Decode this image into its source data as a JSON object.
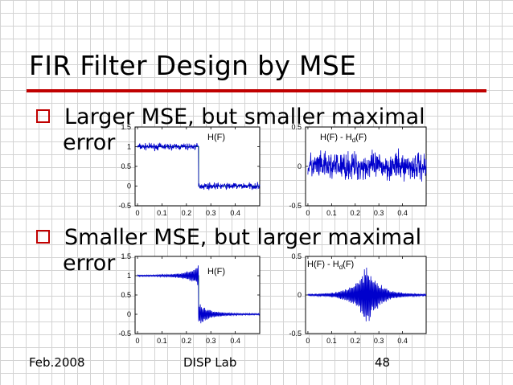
{
  "slide": {
    "title": "FIR Filter Design by MSE",
    "bullets": [
      {
        "line1": "Larger MSE,  but smaller maximal",
        "line2": "error"
      },
      {
        "line1": "Smaller MSE,  but larger maximal",
        "line2": "error"
      }
    ],
    "footer": {
      "left": "Feb.2008",
      "center": "DISP Lab",
      "right": "48"
    }
  },
  "colors": {
    "accent": "#c00000",
    "signal": "#0000cc",
    "ideal": "#008000"
  },
  "chart_data": [
    {
      "type": "line",
      "label": "H(F)",
      "x_ticks": [
        "0",
        "0.1",
        "0.2",
        "0.3",
        "0.4"
      ],
      "y_ticks": [
        "1.5",
        "1",
        "0.5",
        "0",
        "-0.5"
      ],
      "xlim": [
        -0.01,
        0.5
      ],
      "ylim": [
        -0.5,
        1.5
      ],
      "passband_level": 1,
      "cutoff": 0.25,
      "ripple": "large-uniform",
      "series": [
        {
          "name": "H(F)",
          "shape": "lowpass"
        }
      ]
    },
    {
      "type": "line",
      "label_main": "H(F) - H",
      "label_sub": "d",
      "label_end": "(F)",
      "x_ticks": [
        "0",
        "0.1",
        "0.2",
        "0.3",
        "0.4"
      ],
      "y_ticks": [
        "0.5",
        "0",
        "-0.5"
      ],
      "xlim": [
        -0.01,
        0.5
      ],
      "ylim": [
        -0.5,
        0.5
      ],
      "ripple": "large-uniform",
      "series": [
        {
          "name": "H(F) - Hd(F)",
          "shape": "uniform-error"
        }
      ]
    },
    {
      "type": "line",
      "label": "H(F)",
      "x_ticks": [
        "0",
        "0.1",
        "0.2",
        "0.3",
        "0.4"
      ],
      "y_ticks": [
        "1.5",
        "1",
        "0.5",
        "0",
        "-0.5"
      ],
      "xlim": [
        -0.01,
        0.5
      ],
      "ylim": [
        -0.5,
        1.5
      ],
      "passband_level": 1,
      "cutoff": 0.25,
      "ripple": "gibbs",
      "series": [
        {
          "name": "H(F)",
          "shape": "lowpass"
        }
      ]
    },
    {
      "type": "line",
      "label_main": "H(F) - H",
      "label_sub": "d",
      "label_end": "(F)",
      "x_ticks": [
        "0",
        "0.1",
        "0.2",
        "0.3",
        "0.4"
      ],
      "y_ticks": [
        "0.5",
        "0",
        "-0.5"
      ],
      "xlim": [
        -0.01,
        0.5
      ],
      "ylim": [
        -0.5,
        0.5
      ],
      "ripple": "gibbs",
      "series": [
        {
          "name": "H(F) - Hd(F)",
          "shape": "gibbs-error"
        }
      ]
    }
  ]
}
